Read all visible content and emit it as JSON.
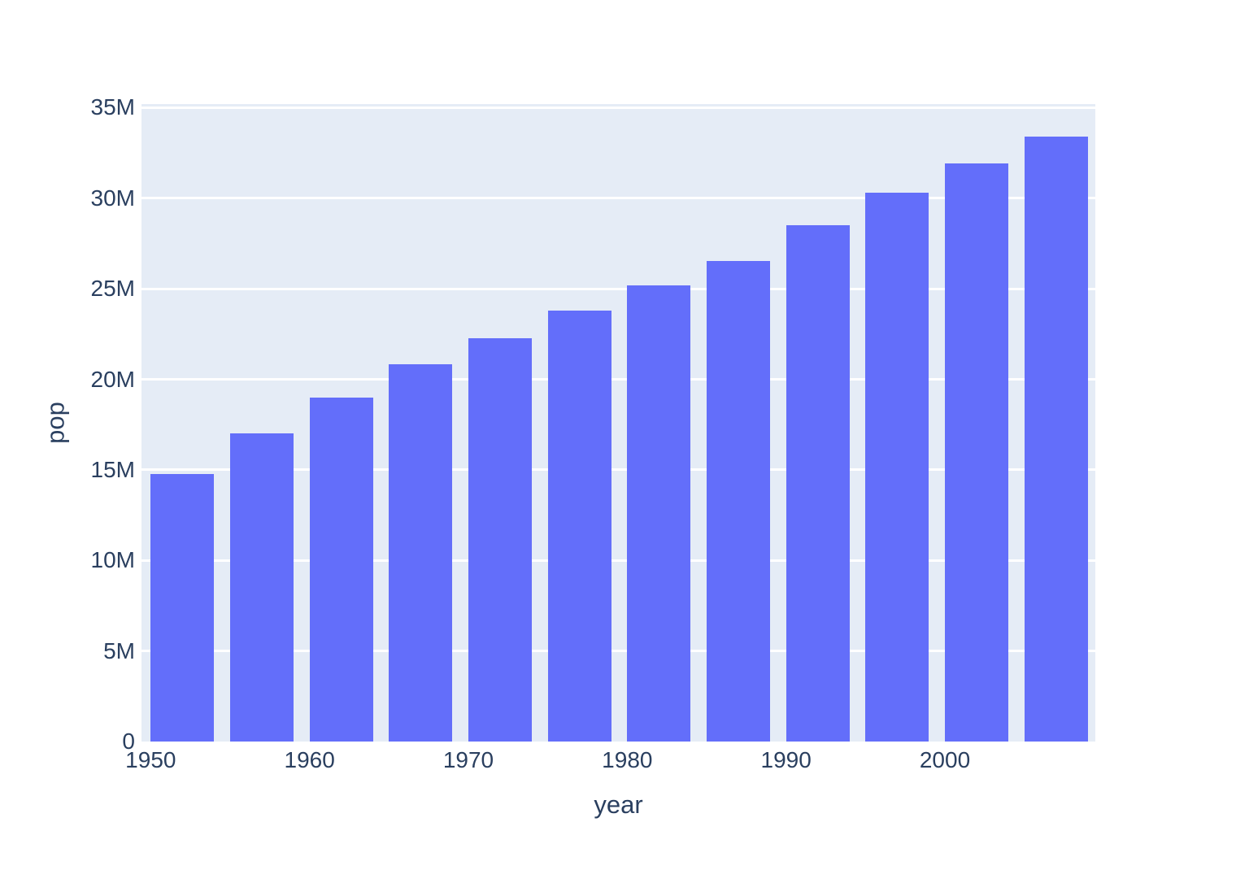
{
  "chart_data": {
    "type": "bar",
    "title": "",
    "xlabel": "year",
    "ylabel": "pop",
    "x": [
      1952,
      1957,
      1962,
      1967,
      1972,
      1977,
      1982,
      1987,
      1992,
      1997,
      2002,
      2007
    ],
    "values": [
      14785584,
      17010154,
      18985849,
      20819767,
      22284500,
      23796400,
      25201900,
      26549700,
      28523502,
      30305843,
      31902268,
      33390141
    ],
    "series_name": "pop",
    "xlim": [
      1949.42,
      2009.47
    ],
    "ylim": [
      0,
      35200000
    ],
    "bar_half_width_years": 2,
    "grid": true,
    "legend": "none",
    "x_ticks": [
      {
        "value": 1950,
        "label": "1950"
      },
      {
        "value": 1960,
        "label": "1960"
      },
      {
        "value": 1970,
        "label": "1970"
      },
      {
        "value": 1980,
        "label": "1980"
      },
      {
        "value": 1990,
        "label": "1990"
      },
      {
        "value": 2000,
        "label": "2000"
      }
    ],
    "y_ticks": [
      {
        "value": 0,
        "label": "0"
      },
      {
        "value": 5000000,
        "label": "5M"
      },
      {
        "value": 10000000,
        "label": "10M"
      },
      {
        "value": 15000000,
        "label": "15M"
      },
      {
        "value": 20000000,
        "label": "20M"
      },
      {
        "value": 25000000,
        "label": "25M"
      },
      {
        "value": 30000000,
        "label": "30M"
      },
      {
        "value": 35000000,
        "label": "35M"
      }
    ],
    "colors": {
      "bar": "#636EFA",
      "plot_bg": "#E5ECF6",
      "grid": "#FFFFFF",
      "text": "#2A3F5F",
      "paper": "#FFFFFF"
    }
  }
}
